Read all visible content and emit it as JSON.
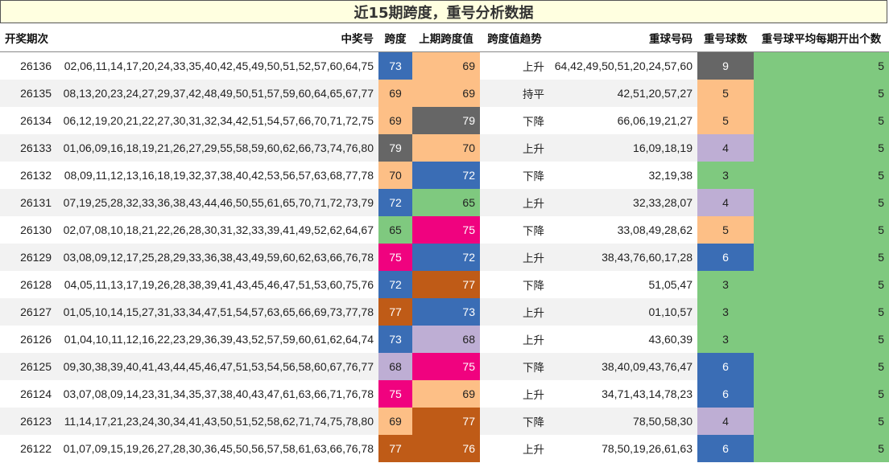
{
  "title": "近15期跨度，重号分析数据",
  "headers": {
    "period": "开奖期次",
    "numbers": "中奖号",
    "span": "跨度",
    "prev_span": "上期跨度值",
    "trend": "跨度值趋势",
    "repeat_numbers": "重球号码",
    "repeat_count": "重号球数",
    "avg_repeat": "重号球平均每期开出个数"
  },
  "palette": {
    "73": "#3a6db5",
    "69": "#fdbf86",
    "79": "#666666",
    "70": "#fdbf86",
    "72": "#3a6db5",
    "65": "#7fc97f",
    "75": "#f0027f",
    "77": "#bf5b17",
    "68": "#beaed4",
    "76": "#bf5b17"
  },
  "count_colors": {
    "3": "#7fc97f",
    "4": "#beaed4",
    "5": "#fdbf86",
    "6": "#3a6db5",
    "9": "#666666"
  },
  "avg_color": "#7fc97f",
  "rows": [
    {
      "period": "26136",
      "numbers": "02,06,11,14,17,20,24,33,35,40,42,45,49,50,51,52,57,60,64,75",
      "span": "73",
      "prev_span": "69",
      "trend": "上升",
      "repeat_numbers": "64,42,49,50,51,20,24,57,60",
      "repeat_count": "9",
      "avg": "5"
    },
    {
      "period": "26135",
      "numbers": "08,13,20,23,24,27,29,37,42,48,49,50,51,57,59,60,64,65,67,77",
      "span": "69",
      "prev_span": "69",
      "trend": "持平",
      "repeat_numbers": "42,51,20,57,27",
      "repeat_count": "5",
      "avg": "5"
    },
    {
      "period": "26134",
      "numbers": "06,12,19,20,21,22,27,30,31,32,34,42,51,54,57,66,70,71,72,75",
      "span": "69",
      "prev_span": "79",
      "trend": "下降",
      "repeat_numbers": "66,06,19,21,27",
      "repeat_count": "5",
      "avg": "5"
    },
    {
      "period": "26133",
      "numbers": "01,06,09,16,18,19,21,26,27,29,55,58,59,60,62,66,73,74,76,80",
      "span": "79",
      "prev_span": "70",
      "trend": "上升",
      "repeat_numbers": "16,09,18,19",
      "repeat_count": "4",
      "avg": "5"
    },
    {
      "period": "26132",
      "numbers": "08,09,11,12,13,16,18,19,32,37,38,40,42,53,56,57,63,68,77,78",
      "span": "70",
      "prev_span": "72",
      "trend": "下降",
      "repeat_numbers": "32,19,38",
      "repeat_count": "3",
      "avg": "5"
    },
    {
      "period": "26131",
      "numbers": "07,19,25,28,32,33,36,38,43,44,46,50,55,61,65,70,71,72,73,79",
      "span": "72",
      "prev_span": "65",
      "trend": "上升",
      "repeat_numbers": "32,33,28,07",
      "repeat_count": "4",
      "avg": "5"
    },
    {
      "period": "26130",
      "numbers": "02,07,08,10,18,21,22,26,28,30,31,32,33,39,41,49,52,62,64,67",
      "span": "65",
      "prev_span": "75",
      "trend": "下降",
      "repeat_numbers": "33,08,49,28,62",
      "repeat_count": "5",
      "avg": "5"
    },
    {
      "period": "26129",
      "numbers": "03,08,09,12,17,25,28,29,33,36,38,43,49,59,60,62,63,66,76,78",
      "span": "75",
      "prev_span": "72",
      "trend": "上升",
      "repeat_numbers": "38,43,76,60,17,28",
      "repeat_count": "6",
      "avg": "5"
    },
    {
      "period": "26128",
      "numbers": "04,05,11,13,17,19,26,28,38,39,41,43,45,46,47,51,53,60,75,76",
      "span": "72",
      "prev_span": "77",
      "trend": "下降",
      "repeat_numbers": "51,05,47",
      "repeat_count": "3",
      "avg": "5"
    },
    {
      "period": "26127",
      "numbers": "01,05,10,14,15,27,31,33,34,47,51,54,57,63,65,66,69,73,77,78",
      "span": "77",
      "prev_span": "73",
      "trend": "上升",
      "repeat_numbers": "01,10,57",
      "repeat_count": "3",
      "avg": "5"
    },
    {
      "period": "26126",
      "numbers": "01,04,10,11,12,16,22,23,29,36,39,43,52,57,59,60,61,62,64,74",
      "span": "73",
      "prev_span": "68",
      "trend": "上升",
      "repeat_numbers": "43,60,39",
      "repeat_count": "3",
      "avg": "5"
    },
    {
      "period": "26125",
      "numbers": "09,30,38,39,40,41,43,44,45,46,47,51,53,54,56,58,60,67,76,77",
      "span": "68",
      "prev_span": "75",
      "trend": "下降",
      "repeat_numbers": "38,40,09,43,76,47",
      "repeat_count": "6",
      "avg": "5"
    },
    {
      "period": "26124",
      "numbers": "03,07,08,09,14,23,31,34,35,37,38,40,43,47,61,63,66,71,76,78",
      "span": "75",
      "prev_span": "69",
      "trend": "上升",
      "repeat_numbers": "34,71,43,14,78,23",
      "repeat_count": "6",
      "avg": "5"
    },
    {
      "period": "26123",
      "numbers": "11,14,17,21,23,24,30,34,41,43,50,51,52,58,62,71,74,75,78,80",
      "span": "69",
      "prev_span": "77",
      "trend": "下降",
      "repeat_numbers": "78,50,58,30",
      "repeat_count": "4",
      "avg": "5"
    },
    {
      "period": "26122",
      "numbers": "01,07,09,15,19,26,27,28,30,36,45,50,56,57,58,61,63,66,76,78",
      "span": "77",
      "prev_span": "76",
      "trend": "上升",
      "repeat_numbers": "78,50,19,26,61,63",
      "repeat_count": "6",
      "avg": "5"
    }
  ]
}
